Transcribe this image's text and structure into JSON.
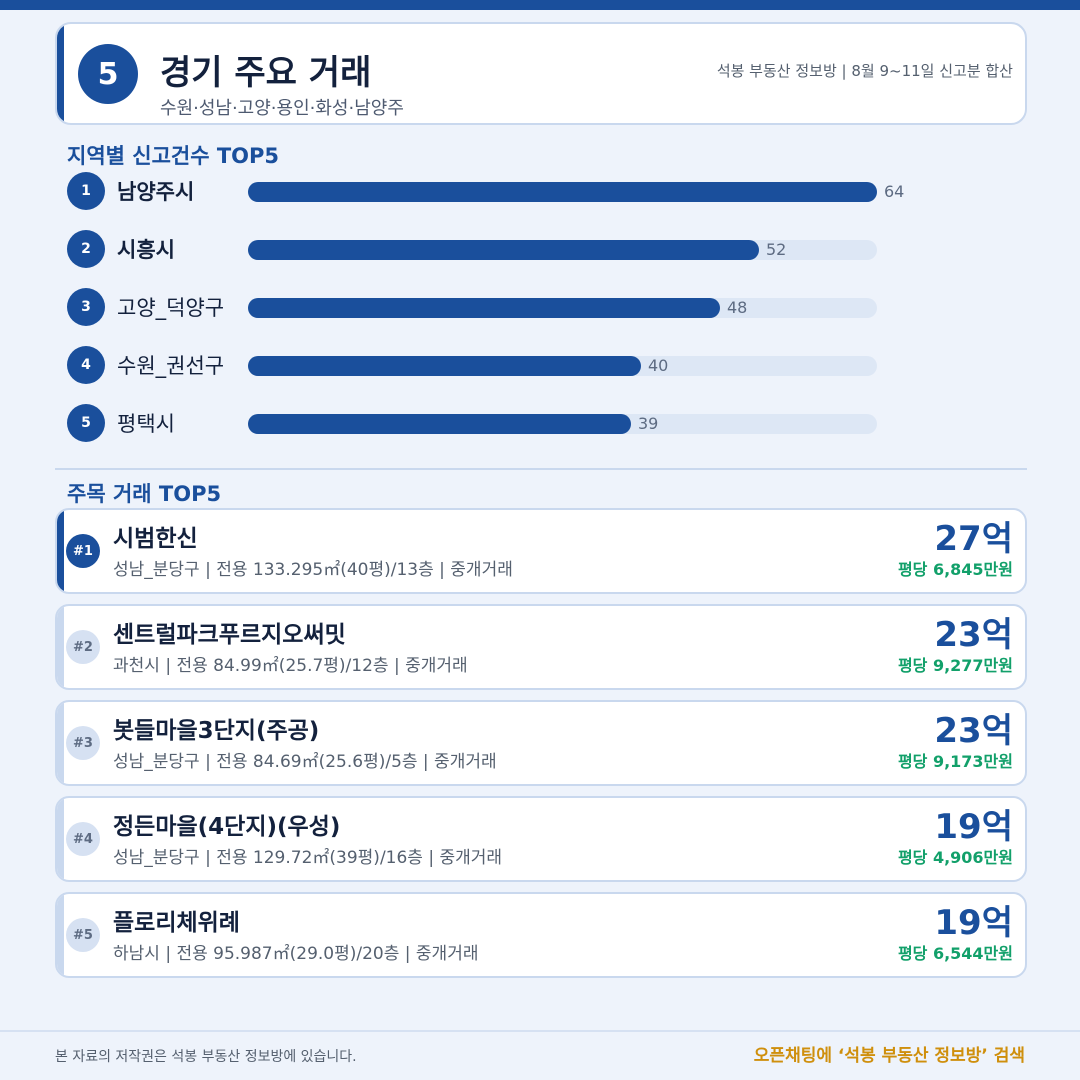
{
  "header": {
    "number": "5",
    "title": "경기 주요 거래",
    "subtitle": "수원·성남·고양·용인·화성·남양주",
    "source": "석봉 부동산 정보방 | 8월 9~11일 신고분 합산"
  },
  "regions": {
    "title": "지역별 신고건수 TOP5",
    "max": 64,
    "items": [
      {
        "rank": "1",
        "name": "남양주시",
        "value": 64
      },
      {
        "rank": "2",
        "name": "시흥시",
        "value": 52
      },
      {
        "rank": "3",
        "name": "고양_덕양구",
        "value": 48
      },
      {
        "rank": "4",
        "name": "수원_권선구",
        "value": 40
      },
      {
        "rank": "5",
        "name": "평택시",
        "value": 39
      }
    ]
  },
  "deals": {
    "title": "주목 거래 TOP5",
    "items": [
      {
        "rank": "#1",
        "name": "시범한신",
        "meta": "성남_분당구 | 전용 133.295㎡(40평)/13층 | 중개거래",
        "price": "27억",
        "per_pyeong": "평당 6,845만원"
      },
      {
        "rank": "#2",
        "name": "센트럴파크푸르지오써밋",
        "meta": "과천시 | 전용 84.99㎡(25.7평)/12층 | 중개거래",
        "price": "23억",
        "per_pyeong": "평당 9,277만원"
      },
      {
        "rank": "#3",
        "name": "봇들마을3단지(주공)",
        "meta": "성남_분당구 | 전용 84.69㎡(25.6평)/5층 | 중개거래",
        "price": "23억",
        "per_pyeong": "평당 9,173만원"
      },
      {
        "rank": "#4",
        "name": "정든마을(4단지)(우성)",
        "meta": "성남_분당구 | 전용 129.72㎡(39평)/16층 | 중개거래",
        "price": "19억",
        "per_pyeong": "평당 4,906만원"
      },
      {
        "rank": "#5",
        "name": "플로리체위례",
        "meta": "하남시 | 전용 95.987㎡(29.0평)/20층 | 중개거래",
        "price": "19억",
        "per_pyeong": "평당 6,544만원"
      }
    ]
  },
  "footer": {
    "copyright": "본 자료의 저작권은 석봉 부동산 정보방에 있습니다.",
    "cta": "오픈채팅에 ‘석봉 부동산 정보방’ 검색"
  },
  "colors": {
    "primary": "#1a4f9c",
    "accent_green": "#12a06a",
    "cta_gold": "#cf8f0c",
    "track": "#dde7f5"
  }
}
